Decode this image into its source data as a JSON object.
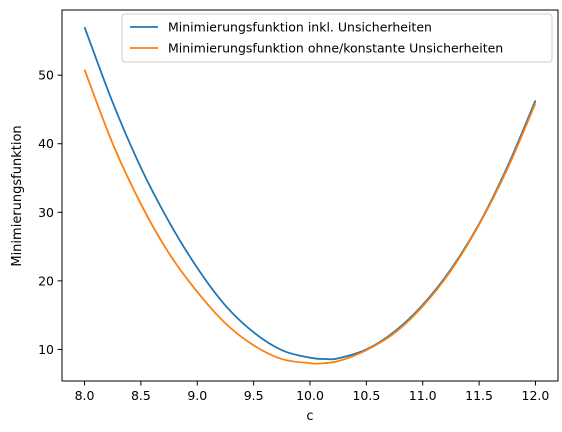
{
  "chart_data": {
    "type": "line",
    "title": "",
    "xlabel": "c",
    "ylabel": "Minimierungsfunktion",
    "xlim": [
      7.8,
      12.2
    ],
    "ylim": [
      5.4,
      59.5
    ],
    "xticks": [
      8.0,
      8.5,
      9.0,
      9.5,
      10.0,
      10.5,
      11.0,
      11.5,
      12.0
    ],
    "xtick_labels": [
      "8.0",
      "8.5",
      "9.0",
      "9.5",
      "10.0",
      "10.5",
      "11.0",
      "11.5",
      "12.0"
    ],
    "yticks": [
      10,
      20,
      30,
      40,
      50
    ],
    "ytick_labels": [
      "10",
      "20",
      "30",
      "40",
      "50"
    ],
    "grid": false,
    "legend_position": "top-right",
    "series": [
      {
        "name": "Minimierungsfunktion inkl. Unsicherheiten",
        "color": "#1f77b4",
        "x": [
          8.0,
          8.25,
          8.5,
          8.75,
          9.0,
          9.25,
          9.5,
          9.75,
          10.0,
          10.15,
          10.25,
          10.5,
          10.75,
          11.0,
          11.25,
          11.5,
          11.75,
          12.0
        ],
        "y": [
          57.0,
          46.0,
          36.5,
          28.6,
          21.9,
          16.4,
          12.5,
          9.9,
          8.8,
          8.6,
          8.7,
          10.0,
          12.6,
          16.5,
          21.7,
          28.3,
          36.6,
          46.3
        ]
      },
      {
        "name": "Minimierungsfunktion ohne/konstante Unsicherheiten",
        "color": "#ff7f0e",
        "x": [
          8.0,
          8.25,
          8.5,
          8.75,
          9.0,
          9.25,
          9.5,
          9.75,
          10.0,
          10.08,
          10.25,
          10.5,
          10.75,
          11.0,
          11.25,
          11.5,
          11.75,
          12.0
        ],
        "y": [
          50.8,
          40.0,
          31.2,
          24.0,
          18.4,
          13.8,
          10.6,
          8.6,
          8.0,
          7.95,
          8.3,
          9.9,
          12.4,
          16.3,
          21.5,
          28.2,
          36.3,
          45.9
        ]
      }
    ]
  }
}
